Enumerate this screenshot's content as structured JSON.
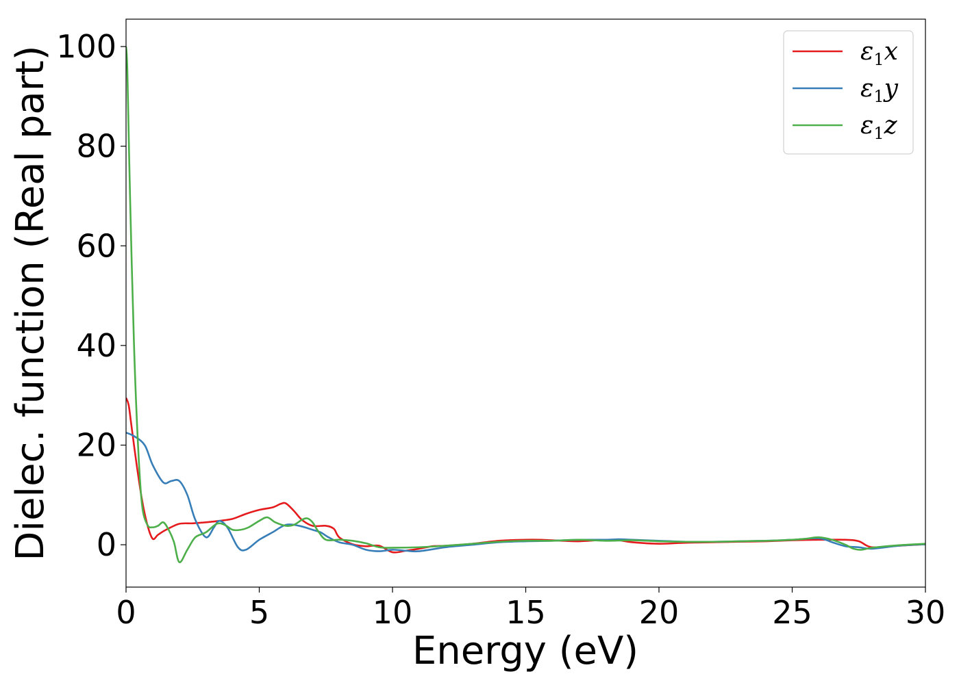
{
  "chart_data": {
    "type": "line",
    "title": "",
    "xlabel": "Energy (eV)",
    "ylabel": "Dielec. function (Real part)",
    "xlim": [
      0,
      30
    ],
    "ylim": [
      -8.5,
      105.5
    ],
    "xticks": [
      0,
      5,
      10,
      15,
      20,
      25,
      30
    ],
    "yticks": [
      0,
      20,
      40,
      60,
      80,
      100
    ],
    "xtick_labels": [
      "0",
      "5",
      "10",
      "15",
      "20",
      "25",
      "30"
    ],
    "ytick_labels": [
      "0",
      "20",
      "40",
      "60",
      "80",
      "100"
    ],
    "grid": false,
    "legend_position": "top-right",
    "series": [
      {
        "name": "ε₁x",
        "legend_main": "ε",
        "legend_sub": "1",
        "legend_tail": "x",
        "color": "#e41a1c",
        "x": [
          0,
          0.1,
          0.2,
          0.4,
          0.6,
          0.8,
          1.0,
          1.2,
          1.5,
          2.0,
          2.5,
          3.0,
          3.5,
          4.0,
          4.5,
          5.0,
          5.5,
          5.8,
          6.0,
          6.3,
          6.6,
          7.0,
          7.5,
          7.8,
          8.0,
          8.5,
          9.0,
          9.5,
          10.0,
          10.5,
          11.0,
          11.5,
          12.0,
          13.0,
          14.0,
          15.0,
          15.5,
          16.0,
          17.0,
          18.0,
          18.5,
          19.0,
          20.0,
          21.0,
          22.0,
          23.0,
          24.0,
          25.0,
          26.0,
          27.0,
          27.5,
          28.0,
          29.0,
          30.0
        ],
        "y": [
          29.5,
          28.0,
          24.0,
          16.0,
          9.0,
          4.0,
          1.2,
          2.0,
          3.0,
          4.2,
          4.3,
          4.5,
          4.8,
          5.2,
          6.2,
          7.0,
          7.5,
          8.2,
          8.3,
          6.8,
          5.0,
          3.8,
          3.8,
          3.2,
          1.5,
          0.1,
          -0.3,
          -0.2,
          -1.5,
          -1.2,
          -0.8,
          -0.3,
          -0.2,
          0.2,
          0.8,
          1.0,
          1.0,
          0.9,
          0.7,
          1.0,
          0.9,
          0.5,
          0.2,
          0.4,
          0.5,
          0.6,
          0.7,
          0.9,
          1.0,
          1.0,
          0.7,
          -0.5,
          -0.2,
          0.1
        ]
      },
      {
        "name": "ε₁y",
        "legend_main": "ε",
        "legend_sub": "1",
        "legend_tail": "y",
        "color": "#377eb8",
        "x": [
          0,
          0.3,
          0.7,
          1.0,
          1.4,
          1.7,
          2.0,
          2.3,
          2.6,
          3.0,
          3.3,
          3.5,
          3.8,
          4.2,
          4.5,
          5.0,
          5.5,
          6.0,
          6.5,
          7.0,
          7.3,
          7.6,
          8.0,
          8.5,
          9.0,
          9.5,
          10.0,
          10.5,
          11.0,
          12.0,
          13.0,
          14.0,
          15.0,
          16.0,
          17.0,
          18.0,
          18.5,
          19.0,
          20.0,
          21.0,
          22.0,
          23.0,
          24.0,
          25.0,
          26.0,
          26.5,
          27.0,
          27.5,
          28.0,
          29.0,
          30.0
        ],
        "y": [
          22.5,
          21.8,
          20.0,
          16.0,
          12.5,
          12.8,
          12.8,
          10.0,
          5.0,
          1.5,
          3.5,
          4.8,
          3.5,
          -0.5,
          -1.0,
          1.0,
          2.5,
          4.0,
          3.8,
          3.0,
          2.5,
          1.5,
          0.5,
          0.0,
          -1.0,
          -1.3,
          -1.0,
          -1.2,
          -1.3,
          -0.5,
          0.0,
          0.5,
          0.7,
          0.8,
          1.0,
          1.0,
          1.1,
          1.0,
          0.8,
          0.6,
          0.6,
          0.7,
          0.8,
          1.0,
          1.3,
          0.5,
          -0.3,
          -0.5,
          -0.8,
          -0.2,
          0.1
        ]
      },
      {
        "name": "ε₁z",
        "legend_main": "ε",
        "legend_sub": "1",
        "legend_tail": "z",
        "color": "#4daf4a",
        "x": [
          0,
          0.05,
          0.15,
          0.3,
          0.45,
          0.6,
          0.8,
          1.0,
          1.2,
          1.4,
          1.6,
          1.8,
          2.0,
          2.3,
          2.6,
          3.0,
          3.4,
          3.7,
          4.0,
          4.3,
          4.6,
          5.0,
          5.3,
          5.6,
          6.0,
          6.3,
          6.6,
          6.8,
          7.0,
          7.2,
          7.5,
          8.0,
          8.5,
          9.0,
          9.5,
          10.0,
          11.0,
          12.0,
          13.0,
          14.0,
          15.0,
          16.0,
          17.0,
          18.0,
          19.0,
          20.0,
          21.0,
          22.0,
          23.0,
          24.0,
          25.0,
          25.5,
          26.0,
          26.5,
          27.0,
          27.3,
          27.6,
          28.0,
          29.0,
          30.0
        ],
        "y": [
          100.0,
          95.0,
          70.0,
          40.0,
          20.0,
          8.0,
          4.0,
          3.5,
          3.8,
          4.5,
          3.0,
          0.5,
          -3.5,
          -1.0,
          1.5,
          2.5,
          4.2,
          4.0,
          3.0,
          3.0,
          3.5,
          4.8,
          5.5,
          4.5,
          3.8,
          4.0,
          5.0,
          5.3,
          4.5,
          2.8,
          1.0,
          1.0,
          0.8,
          0.3,
          -0.5,
          -0.6,
          -0.5,
          -0.2,
          0.2,
          0.6,
          0.8,
          0.8,
          1.0,
          0.8,
          0.9,
          0.7,
          0.6,
          0.6,
          0.7,
          0.8,
          1.0,
          1.2,
          1.5,
          1.0,
          0.0,
          -0.8,
          -1.0,
          -0.6,
          -0.1,
          0.2
        ]
      }
    ]
  }
}
